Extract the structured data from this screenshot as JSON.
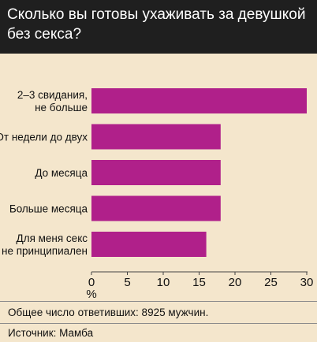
{
  "title": "Сколько вы готовы ухаживать за девушкой без секса?",
  "colors": {
    "background": "#f4e6cc",
    "header": "#1f1f1f",
    "bar": "#b0208a"
  },
  "chart_data": {
    "type": "bar",
    "orientation": "horizontal",
    "categories": [
      "2–3 свидания, не больше",
      "От недели до двух",
      "До месяца",
      "Больше месяца",
      "Для меня секс не принципиален"
    ],
    "category_lines": [
      [
        "2–3 свидания,",
        "не больше"
      ],
      [
        "От недели до двух"
      ],
      [
        "До месяца"
      ],
      [
        "Больше месяца"
      ],
      [
        "Для меня секс",
        "не принципиален"
      ]
    ],
    "values": [
      30,
      18,
      18,
      18,
      16
    ],
    "xlim": [
      0,
      30
    ],
    "xticks": [
      0,
      5,
      10,
      15,
      20,
      25,
      30
    ],
    "xlabel": "%",
    "grid": false
  },
  "footer": {
    "respondents": "Общее число ответивших: 8925 мужчин.",
    "source": "Источник: Мамба"
  }
}
